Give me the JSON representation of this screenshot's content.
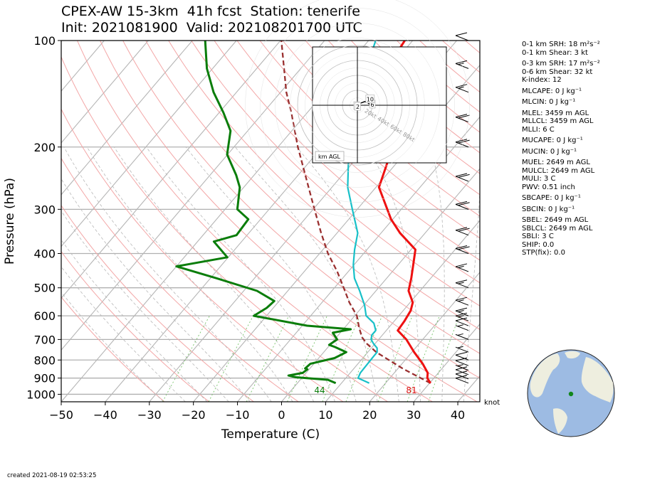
{
  "title_line1": "CPEX-AW 15-3km  41h fcst  Station: tenerife",
  "title_line2": "Init: 2021081900  Valid: 202108201700 UTC",
  "created": "created 2021-08-19 02:53:25",
  "stats": [
    "0-1 km SRH: 18 m²s⁻²",
    "0-1 km Shear: 3 kt",
    "0-3 km SRH: 17 m²s⁻²",
    "0-6 km Shear: 32 kt",
    "K-index: 12",
    "MLCAPE: 0 J kg⁻¹",
    "MLCIN: 0 J kg⁻¹",
    "MLEL: 3459 m AGL",
    "MLLCL: 3459 m AGL",
    "MLLI: 6 C",
    "MUCAPE: 0 J kg⁻¹",
    "MUCIN: 0 J kg⁻¹",
    "MUEL: 2649 m AGL",
    "MULCL: 2649 m AGL",
    "MULI: 3 C",
    "PWV: 0.51 inch",
    "SBCAPE: 0 J kg⁻¹",
    "SBCIN: 0 J kg⁻¹",
    "SBEL: 2649 m AGL",
    "SBLCL: 2649 m AGL",
    "SBLI: 3 C",
    "SHIP: 0.0",
    "STP(fix): 0.0"
  ],
  "chart_data": {
    "type": "skew-T log-P",
    "xlabel": "Temperature (C)",
    "ylabel": "Pressure (hPa)",
    "xlim": [
      -50,
      45
    ],
    "ylim": [
      1050,
      100
    ],
    "x_ticks": [
      -50,
      -40,
      -30,
      -20,
      -10,
      0,
      10,
      20,
      30,
      40
    ],
    "y_ticks": [
      100,
      200,
      300,
      400,
      500,
      600,
      700,
      800,
      900,
      1000
    ],
    "y_scale": "log",
    "surface_dewpoint_label": "44",
    "surface_temp_label": "81",
    "wind_unit_label": "knot",
    "temperature": [
      [
        930,
        30.2
      ],
      [
        900,
        28.5
      ],
      [
        870,
        27.6
      ],
      [
        820,
        24.7
      ],
      [
        760,
        20.5
      ],
      [
        700,
        16.3
      ],
      [
        660,
        12.6
      ],
      [
        620,
        12.3
      ],
      [
        580,
        11.7
      ],
      [
        550,
        10.6
      ],
      [
        510,
        7.4
      ],
      [
        470,
        5.6
      ],
      [
        430,
        3.4
      ],
      [
        390,
        1.0
      ],
      [
        350,
        -5.7
      ],
      [
        320,
        -10.4
      ],
      [
        260,
        -19.3
      ],
      [
        210,
        -23.1
      ],
      [
        180,
        -29.2
      ],
      [
        160,
        -34.4
      ],
      [
        140,
        -37.6
      ],
      [
        120,
        -40.5
      ],
      [
        100,
        -41.8
      ]
    ],
    "dewpoint": [
      [
        930,
        8.7
      ],
      [
        910,
        6.3
      ],
      [
        895,
        -1.5
      ],
      [
        885,
        -3.5
      ],
      [
        870,
        -0.8
      ],
      [
        850,
        -0.4
      ],
      [
        845,
        -1.1
      ],
      [
        820,
        -0.8
      ],
      [
        790,
        3.6
      ],
      [
        760,
        5.1
      ],
      [
        735,
        1.5
      ],
      [
        725,
        -0.2
      ],
      [
        700,
        0.6
      ],
      [
        670,
        -1.7
      ],
      [
        655,
        1.7
      ],
      [
        640,
        -8.9
      ],
      [
        600,
        -22.9
      ],
      [
        570,
        -21.5
      ],
      [
        545,
        -21.1
      ],
      [
        510,
        -27.0
      ],
      [
        470,
        -38.6
      ],
      [
        435,
        -50.0
      ],
      [
        410,
        -40.2
      ],
      [
        370,
        -46.3
      ],
      [
        355,
        -42.4
      ],
      [
        320,
        -42.8
      ],
      [
        300,
        -47.2
      ],
      [
        260,
        -50.9
      ],
      [
        240,
        -54.1
      ],
      [
        210,
        -60.1
      ],
      [
        180,
        -63.9
      ],
      [
        160,
        -69.0
      ],
      [
        140,
        -75.2
      ],
      [
        120,
        -81.3
      ],
      [
        100,
        -87.1
      ]
    ],
    "wetbulb": [
      [
        930,
        16.3
      ],
      [
        900,
        12.8
      ],
      [
        870,
        12.3
      ],
      [
        820,
        12.2
      ],
      [
        780,
        12.1
      ],
      [
        760,
        12.1
      ],
      [
        740,
        11.3
      ],
      [
        720,
        9.7
      ],
      [
        700,
        8.3
      ],
      [
        680,
        7.6
      ],
      [
        660,
        7.6
      ],
      [
        630,
        5.8
      ],
      [
        600,
        2.6
      ],
      [
        560,
        0.2
      ],
      [
        510,
        -3.7
      ],
      [
        470,
        -7.3
      ],
      [
        430,
        -10.2
      ],
      [
        390,
        -12.8
      ],
      [
        350,
        -15.3
      ],
      [
        300,
        -21.1
      ],
      [
        260,
        -26.4
      ],
      [
        220,
        -31.2
      ],
      [
        190,
        -35.1
      ],
      [
        160,
        -39.5
      ],
      [
        140,
        -42.6
      ],
      [
        120,
        -45.1
      ],
      [
        100,
        -48.4
      ]
    ],
    "parcel": [
      [
        930,
        30.2
      ],
      [
        850,
        21.5
      ],
      [
        800,
        16.3
      ],
      [
        760,
        11.9
      ],
      [
        720,
        8.2
      ],
      [
        690,
        5.8
      ],
      [
        650,
        3.4
      ],
      [
        600,
        0.5
      ],
      [
        550,
        -3.8
      ],
      [
        500,
        -7.9
      ],
      [
        450,
        -12.5
      ],
      [
        400,
        -18.1
      ],
      [
        350,
        -23.6
      ],
      [
        300,
        -29.7
      ],
      [
        250,
        -36.8
      ],
      [
        200,
        -45.5
      ],
      [
        160,
        -53.6
      ],
      [
        140,
        -58.7
      ],
      [
        100,
        -69.8
      ]
    ],
    "hodograph": {
      "corner_label": "km AGL",
      "ring_labels": [
        "20kt",
        "40kt",
        "60kt",
        "80kt"
      ],
      "trace": [
        [
          -1,
          -1
        ],
        [
          0.5,
          -2
        ],
        [
          2,
          2
        ],
        [
          10,
          5
        ],
        [
          20,
          1
        ],
        [
          18,
          0
        ],
        [
          12,
          5
        ],
        [
          17,
          8
        ]
      ],
      "height_labels": [
        {
          "text": "1",
          "u": -1,
          "v": -1
        },
        {
          "text": "2",
          "u": 0.5,
          "v": -2
        },
        {
          "text": "6",
          "u": 20,
          "v": 1
        },
        {
          "text": "10",
          "u": 17,
          "v": 8
        }
      ]
    },
    "wind_barbs_kt": [
      [
        930,
        10
      ],
      [
        905,
        10
      ],
      [
        880,
        10
      ],
      [
        855,
        5
      ],
      [
        830,
        10
      ],
      [
        800,
        10
      ],
      [
        760,
        5
      ],
      [
        700,
        5
      ],
      [
        660,
        5
      ],
      [
        640,
        10
      ],
      [
        620,
        15
      ],
      [
        600,
        15
      ],
      [
        560,
        15
      ],
      [
        500,
        15
      ],
      [
        450,
        15
      ],
      [
        400,
        20
      ],
      [
        355,
        20
      ],
      [
        300,
        20
      ],
      [
        250,
        20
      ],
      [
        200,
        20
      ],
      [
        170,
        20
      ],
      [
        140,
        15
      ],
      [
        120,
        15
      ],
      [
        100,
        10
      ]
    ],
    "globe_marker": "Tenerife (North Atlantic)"
  }
}
